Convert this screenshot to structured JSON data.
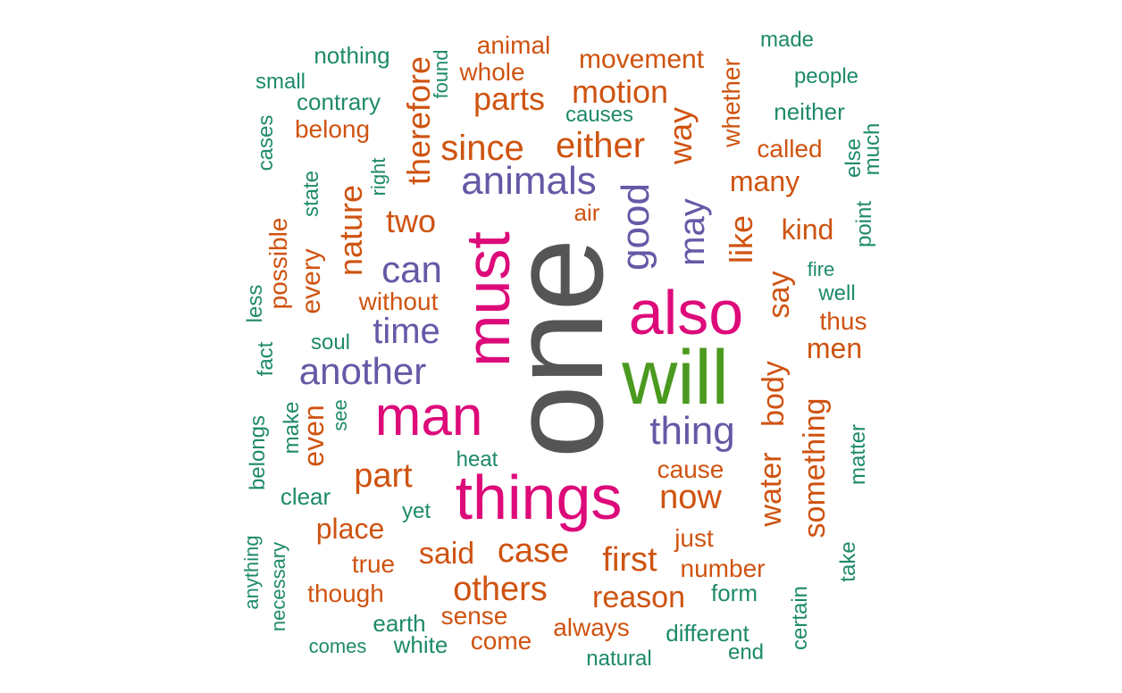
{
  "palette": {
    "gray": "#555555",
    "green": "#4a9a1f",
    "magenta": "#dd0a7a",
    "purple": "#6459a6",
    "orange": "#cf5310",
    "teal": "#1e8a6a"
  },
  "words": [
    {
      "text": "one",
      "color": "gray"
    },
    {
      "text": "will",
      "color": "green"
    },
    {
      "text": "must",
      "color": "magenta"
    },
    {
      "text": "also",
      "color": "magenta"
    },
    {
      "text": "things",
      "color": "magenta"
    },
    {
      "text": "man",
      "color": "magenta"
    },
    {
      "text": "animals",
      "color": "purple"
    },
    {
      "text": "good",
      "color": "purple"
    },
    {
      "text": "thing",
      "color": "purple"
    },
    {
      "text": "another",
      "color": "purple"
    },
    {
      "text": "can",
      "color": "purple"
    },
    {
      "text": "time",
      "color": "purple"
    },
    {
      "text": "may",
      "color": "purple"
    },
    {
      "text": "either",
      "color": "orange"
    },
    {
      "text": "since",
      "color": "orange"
    },
    {
      "text": "motion",
      "color": "orange"
    },
    {
      "text": "parts",
      "color": "orange"
    },
    {
      "text": "two",
      "color": "orange"
    },
    {
      "text": "nature",
      "color": "orange"
    },
    {
      "text": "therefore",
      "color": "orange"
    },
    {
      "text": "way",
      "color": "orange"
    },
    {
      "text": "like",
      "color": "orange"
    },
    {
      "text": "say",
      "color": "orange"
    },
    {
      "text": "body",
      "color": "orange"
    },
    {
      "text": "water",
      "color": "orange"
    },
    {
      "text": "something",
      "color": "orange"
    },
    {
      "text": "part",
      "color": "orange"
    },
    {
      "text": "now",
      "color": "orange"
    },
    {
      "text": "case",
      "color": "orange"
    },
    {
      "text": "others",
      "color": "orange"
    },
    {
      "text": "first",
      "color": "orange"
    },
    {
      "text": "reason",
      "color": "orange"
    },
    {
      "text": "said",
      "color": "orange"
    },
    {
      "text": "place",
      "color": "orange"
    },
    {
      "text": "even",
      "color": "orange"
    },
    {
      "text": "every",
      "color": "orange"
    },
    {
      "text": "possible",
      "color": "orange"
    },
    {
      "text": "many",
      "color": "orange"
    },
    {
      "text": "kind",
      "color": "orange"
    },
    {
      "text": "men",
      "color": "orange"
    },
    {
      "text": "movement",
      "color": "orange"
    },
    {
      "text": "animal",
      "color": "orange"
    },
    {
      "text": "whole",
      "color": "orange"
    },
    {
      "text": "belong",
      "color": "orange"
    },
    {
      "text": "called",
      "color": "orange"
    },
    {
      "text": "whether",
      "color": "orange"
    },
    {
      "text": "air",
      "color": "orange"
    },
    {
      "text": "without",
      "color": "orange"
    },
    {
      "text": "thus",
      "color": "orange"
    },
    {
      "text": "cause",
      "color": "orange"
    },
    {
      "text": "just",
      "color": "orange"
    },
    {
      "text": "number",
      "color": "orange"
    },
    {
      "text": "true",
      "color": "orange"
    },
    {
      "text": "though",
      "color": "orange"
    },
    {
      "text": "sense",
      "color": "orange"
    },
    {
      "text": "come",
      "color": "orange"
    },
    {
      "text": "always",
      "color": "orange"
    },
    {
      "text": "nothing",
      "color": "teal"
    },
    {
      "text": "made",
      "color": "teal"
    },
    {
      "text": "people",
      "color": "teal"
    },
    {
      "text": "small",
      "color": "teal"
    },
    {
      "text": "contrary",
      "color": "teal"
    },
    {
      "text": "found",
      "color": "teal"
    },
    {
      "text": "causes",
      "color": "teal"
    },
    {
      "text": "neither",
      "color": "teal"
    },
    {
      "text": "cases",
      "color": "teal"
    },
    {
      "text": "right",
      "color": "teal"
    },
    {
      "text": "state",
      "color": "teal"
    },
    {
      "text": "else",
      "color": "teal"
    },
    {
      "text": "much",
      "color": "teal"
    },
    {
      "text": "point",
      "color": "teal"
    },
    {
      "text": "fire",
      "color": "teal"
    },
    {
      "text": "well",
      "color": "teal"
    },
    {
      "text": "less",
      "color": "teal"
    },
    {
      "text": "soul",
      "color": "teal"
    },
    {
      "text": "fact",
      "color": "teal"
    },
    {
      "text": "make",
      "color": "teal"
    },
    {
      "text": "see",
      "color": "teal"
    },
    {
      "text": "belongs",
      "color": "teal"
    },
    {
      "text": "clear",
      "color": "teal"
    },
    {
      "text": "heat",
      "color": "teal"
    },
    {
      "text": "yet",
      "color": "teal"
    },
    {
      "text": "matter",
      "color": "teal"
    },
    {
      "text": "anything",
      "color": "teal"
    },
    {
      "text": "necessary",
      "color": "teal"
    },
    {
      "text": "form",
      "color": "teal"
    },
    {
      "text": "take",
      "color": "teal"
    },
    {
      "text": "certain",
      "color": "teal"
    },
    {
      "text": "earth",
      "color": "teal"
    },
    {
      "text": "white",
      "color": "teal"
    },
    {
      "text": "different",
      "color": "teal"
    },
    {
      "text": "natural",
      "color": "teal"
    },
    {
      "text": "end",
      "color": "teal"
    },
    {
      "text": "comes",
      "color": "teal"
    }
  ]
}
